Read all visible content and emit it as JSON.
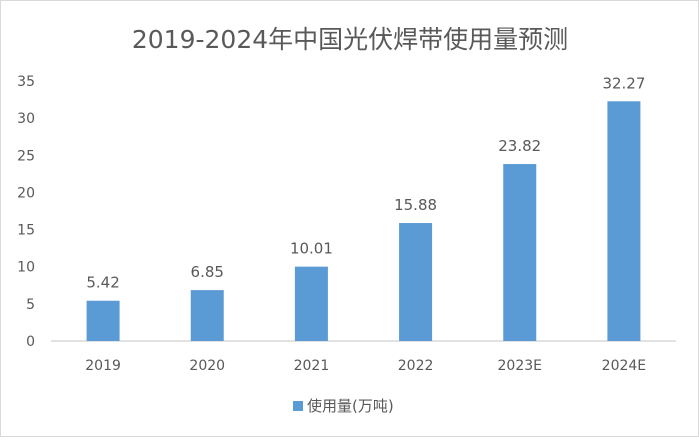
{
  "chart_data": {
    "type": "bar",
    "title": "2019-2024年中国光伏焊带使用量预测",
    "categories": [
      "2019",
      "2020",
      "2021",
      "2022",
      "2023E",
      "2024E"
    ],
    "series": [
      {
        "name": "使用量(万吨)",
        "values": [
          5.42,
          6.85,
          10.01,
          15.88,
          23.82,
          32.27
        ],
        "color": "#5b9bd5"
      }
    ],
    "data_labels": [
      "5.42",
      "6.85",
      "10.01",
      "15.88",
      "23.82",
      "32.27"
    ],
    "ylim": [
      0,
      35
    ],
    "yticks": [
      0,
      5,
      10,
      15,
      20,
      25,
      30,
      35
    ],
    "xlabel": "",
    "ylabel": "",
    "grid": false,
    "legend": "bottom"
  }
}
